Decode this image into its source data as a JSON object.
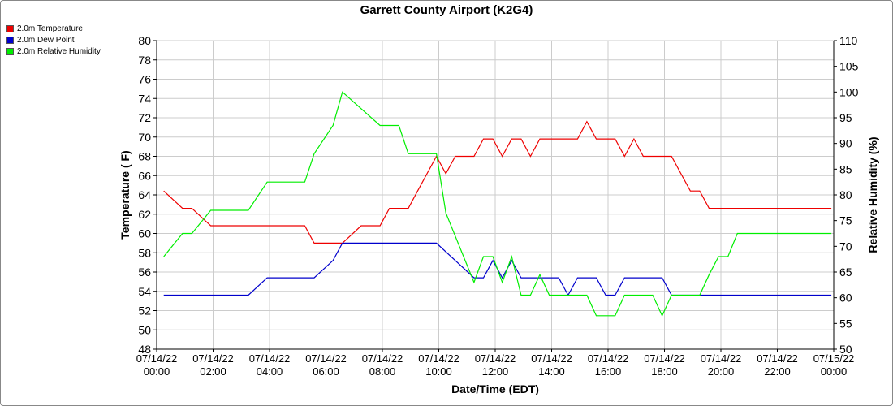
{
  "chart_data": {
    "type": "line",
    "title": "Garrett County Airport (K2G4)",
    "xlabel": "Date/Time (EDT)",
    "ylabel_left": "Temperature ( F)",
    "ylabel_right": "Relative Humidity (%)",
    "ylim_left": [
      48,
      80
    ],
    "ylim_right": [
      50,
      110
    ],
    "xlim": [
      "07/14/22 00:00",
      "07/15/22 00:00"
    ],
    "grid": true,
    "legend_position": "top-left",
    "x_ticks": [
      {
        "date": "07/14/22",
        "time": "00:00"
      },
      {
        "date": "07/14/22",
        "time": "02:00"
      },
      {
        "date": "07/14/22",
        "time": "04:00"
      },
      {
        "date": "07/14/22",
        "time": "06:00"
      },
      {
        "date": "07/14/22",
        "time": "08:00"
      },
      {
        "date": "07/14/22",
        "time": "10:00"
      },
      {
        "date": "07/14/22",
        "time": "12:00"
      },
      {
        "date": "07/14/22",
        "time": "14:00"
      },
      {
        "date": "07/14/22",
        "time": "16:00"
      },
      {
        "date": "07/14/22",
        "time": "18:00"
      },
      {
        "date": "07/14/22",
        "time": "20:00"
      },
      {
        "date": "07/14/22",
        "time": "22:00"
      },
      {
        "date": "07/15/22",
        "time": "00:00"
      }
    ],
    "y_ticks_left": [
      48,
      50,
      52,
      54,
      56,
      58,
      60,
      62,
      64,
      66,
      68,
      70,
      72,
      74,
      76,
      78,
      80
    ],
    "y_ticks_right": [
      50,
      55,
      60,
      65,
      70,
      75,
      80,
      85,
      90,
      95,
      100,
      105,
      110
    ],
    "series": [
      {
        "name": "2.0m Temperature",
        "color": "#ee0000",
        "axis": "left",
        "x": [
          "07/14/22 00:15",
          "07/14/22 00:55",
          "07/14/22 01:15",
          "07/14/22 01:55",
          "07/14/22 02:15",
          "07/14/22 02:55",
          "07/14/22 03:15",
          "07/14/22 03:55",
          "07/14/22 04:15",
          "07/14/22 04:55",
          "07/14/22 05:15",
          "07/14/22 05:35",
          "07/14/22 05:55",
          "07/14/22 06:15",
          "07/14/22 06:35",
          "07/14/22 06:55",
          "07/14/22 07:15",
          "07/14/22 07:35",
          "07/14/22 07:55",
          "07/14/22 08:15",
          "07/14/22 08:35",
          "07/14/22 08:55",
          "07/14/22 09:15",
          "07/14/22 09:35",
          "07/14/22 09:55",
          "07/14/22 10:15",
          "07/14/22 10:35",
          "07/14/22 10:55",
          "07/14/22 11:15",
          "07/14/22 11:35",
          "07/14/22 11:55",
          "07/14/22 12:15",
          "07/14/22 12:35",
          "07/14/22 12:55",
          "07/14/22 13:15",
          "07/14/22 13:35",
          "07/14/22 13:55",
          "07/14/22 14:15",
          "07/14/22 14:35",
          "07/14/22 14:55",
          "07/14/22 15:15",
          "07/14/22 15:35",
          "07/14/22 15:55",
          "07/14/22 16:15",
          "07/14/22 16:35",
          "07/14/22 16:55",
          "07/14/22 17:15",
          "07/14/22 17:35",
          "07/14/22 17:55",
          "07/14/22 18:15",
          "07/14/22 18:35",
          "07/14/22 18:55",
          "07/14/22 19:15",
          "07/14/22 19:35",
          "07/14/22 19:55",
          "07/14/22 20:15",
          "07/14/22 20:35",
          "07/14/22 20:55",
          "07/14/22 22:00",
          "07/14/22 23:55"
        ],
        "values": [
          64.4,
          62.6,
          62.6,
          60.8,
          60.8,
          60.8,
          60.8,
          60.8,
          60.8,
          60.8,
          60.8,
          59.0,
          59.0,
          59.0,
          59.0,
          59.9,
          60.8,
          60.8,
          60.8,
          62.6,
          62.6,
          62.6,
          64.4,
          66.2,
          68.0,
          66.2,
          68.0,
          68.0,
          68.0,
          69.8,
          69.8,
          68.0,
          69.8,
          69.8,
          68.0,
          69.8,
          69.8,
          69.8,
          69.8,
          69.8,
          71.6,
          69.8,
          69.8,
          69.8,
          68.0,
          69.8,
          68.0,
          68.0,
          68.0,
          68.0,
          66.2,
          64.4,
          64.4,
          62.6,
          62.6,
          62.6,
          62.6,
          62.6,
          62.6,
          62.6
        ]
      },
      {
        "name": "2.0m Dew Point",
        "color": "#0000cc",
        "axis": "left",
        "x": [
          "07/14/22 00:15",
          "07/14/22 03:15",
          "07/14/22 03:55",
          "07/14/22 05:35",
          "07/14/22 06:15",
          "07/14/22 06:35",
          "07/14/22 09:55",
          "07/14/22 10:35",
          "07/14/22 11:15",
          "07/14/22 11:35",
          "07/14/22 11:55",
          "07/14/22 12:15",
          "07/14/22 12:35",
          "07/14/22 12:55",
          "07/14/22 13:15",
          "07/14/22 13:55",
          "07/14/22 14:15",
          "07/14/22 14:35",
          "07/14/22 14:55",
          "07/14/22 15:35",
          "07/14/22 15:55",
          "07/14/22 16:15",
          "07/14/22 16:35",
          "07/14/22 17:55",
          "07/14/22 18:15",
          "07/14/22 23:55"
        ],
        "values": [
          53.6,
          53.6,
          55.4,
          55.4,
          57.2,
          59.0,
          59.0,
          57.2,
          55.4,
          55.4,
          57.2,
          55.4,
          57.2,
          55.4,
          55.4,
          55.4,
          55.4,
          53.6,
          55.4,
          55.4,
          53.6,
          53.6,
          55.4,
          55.4,
          53.6,
          53.6
        ]
      },
      {
        "name": "2.0m Relative Humidity",
        "color": "#00ee00",
        "axis": "right",
        "x": [
          "07/14/22 00:15",
          "07/14/22 00:55",
          "07/14/22 01:15",
          "07/14/22 01:55",
          "07/14/22 03:15",
          "07/14/22 03:55",
          "07/14/22 05:15",
          "07/14/22 05:35",
          "07/14/22 06:15",
          "07/14/22 06:35",
          "07/14/22 07:55",
          "07/14/22 08:35",
          "07/14/22 08:55",
          "07/14/22 09:55",
          "07/14/22 10:15",
          "07/14/22 11:15",
          "07/14/22 11:35",
          "07/14/22 11:55",
          "07/14/22 12:15",
          "07/14/22 12:35",
          "07/14/22 12:55",
          "07/14/22 13:15",
          "07/14/22 13:35",
          "07/14/22 13:55",
          "07/14/22 14:15",
          "07/14/22 14:35",
          "07/14/22 14:55",
          "07/14/22 15:15",
          "07/14/22 15:35",
          "07/14/22 15:55",
          "07/14/22 16:15",
          "07/14/22 16:35",
          "07/14/22 16:55",
          "07/14/22 17:15",
          "07/14/22 17:35",
          "07/14/22 17:55",
          "07/14/22 18:15",
          "07/14/22 18:35",
          "07/14/22 18:55",
          "07/14/22 19:15",
          "07/14/22 19:35",
          "07/14/22 19:55",
          "07/14/22 20:15",
          "07/14/22 20:35",
          "07/14/22 20:55",
          "07/14/22 21:55",
          "07/14/22 23:55"
        ],
        "values": [
          68,
          72.5,
          72.5,
          77,
          77,
          82.5,
          82.5,
          88,
          93.5,
          100,
          93.5,
          93.5,
          88,
          88,
          76.5,
          63,
          68,
          68,
          63,
          68,
          60.5,
          60.5,
          64.5,
          60.5,
          60.5,
          60.5,
          60.5,
          60.5,
          56.5,
          56.5,
          56.5,
          60.5,
          60.5,
          60.5,
          60.5,
          56.5,
          60.5,
          60.5,
          60.5,
          60.5,
          64.5,
          68,
          68,
          72.5,
          72.5,
          72.5,
          72.5
        ]
      }
    ]
  }
}
